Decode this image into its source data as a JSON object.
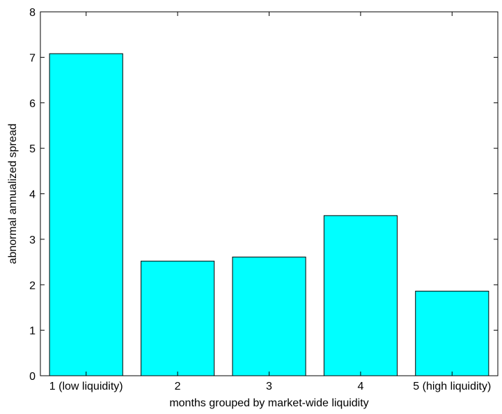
{
  "chart_data": {
    "type": "bar",
    "categories": [
      "1 (low liquidity)",
      "2",
      "3",
      "4",
      "5 (high liquidity)"
    ],
    "values": [
      7.08,
      2.52,
      2.61,
      3.52,
      1.86
    ],
    "xlabel": "months grouped by market-wide liquidity",
    "ylabel": "abnormal annualized spread",
    "ylim": [
      0,
      8
    ],
    "yticks": [
      "0",
      "1",
      "2",
      "3",
      "4",
      "5",
      "6",
      "7",
      "8"
    ],
    "grid": false,
    "legend": "none",
    "bar_color": "#00ffff",
    "bar_edge_color": "#000000"
  }
}
